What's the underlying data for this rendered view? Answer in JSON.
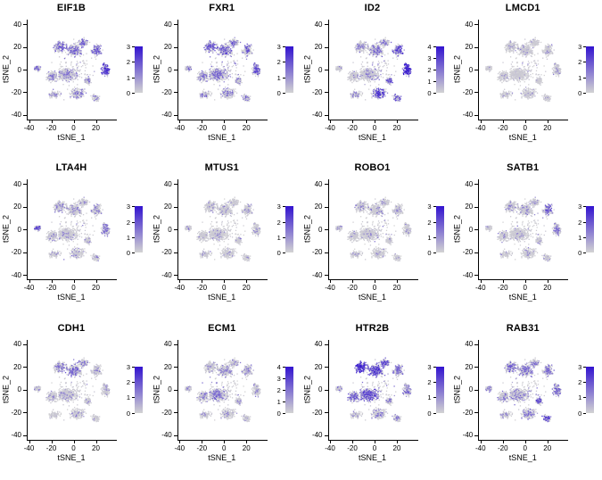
{
  "figure": {
    "description": "Grid of tSNE feature plots showing gene expression",
    "background": "#ffffff"
  },
  "chart_data": {
    "type": "scatter",
    "layout": {
      "rows": 3,
      "cols": 4
    },
    "xlabel": "tSNE_1",
    "ylabel": "tSNE_2",
    "xlim": [
      -42,
      38
    ],
    "ylim": [
      -44,
      44
    ],
    "xticks": [
      -40,
      -20,
      0,
      20
    ],
    "yticks": [
      40,
      20,
      0,
      -20,
      -40
    ],
    "grid": false,
    "legend_position": "right-colorbar",
    "colormap": {
      "low": "#d3d3d3",
      "high": "#3213cf"
    },
    "embedding_clusters": [
      {
        "cx": -13,
        "cy": 20,
        "sx": 5,
        "sy": 4,
        "n": 170
      },
      {
        "cx": 0,
        "cy": 17,
        "sx": 6,
        "sy": 5,
        "n": 220
      },
      {
        "cx": 8,
        "cy": 24,
        "sx": 4,
        "sy": 3,
        "n": 90
      },
      {
        "cx": 20,
        "cy": 17,
        "sx": 4,
        "sy": 4,
        "n": 140
      },
      {
        "cx": 28,
        "cy": 0,
        "sx": 3.5,
        "sy": 5,
        "n": 140
      },
      {
        "cx": -6,
        "cy": -4,
        "sx": 8,
        "sy": 5,
        "n": 320
      },
      {
        "cx": -20,
        "cy": -6,
        "sx": 5,
        "sy": 4,
        "n": 140
      },
      {
        "cx": -33,
        "cy": 1,
        "sx": 2.5,
        "sy": 3,
        "n": 60
      },
      {
        "cx": 3,
        "cy": -21,
        "sx": 6,
        "sy": 4,
        "n": 170
      },
      {
        "cx": -18,
        "cy": -22,
        "sx": 4.5,
        "sy": 3,
        "n": 90
      },
      {
        "cx": 19,
        "cy": -25,
        "sx": 3.5,
        "sy": 3,
        "n": 60
      },
      {
        "cx": 12,
        "cy": -10,
        "sx": 3,
        "sy": 2.5,
        "n": 60
      },
      {
        "cx": -2,
        "cy": 0,
        "sx": 20,
        "sy": 17,
        "n": 120
      }
    ],
    "panels": [
      {
        "title": "EIF1B",
        "colorbar_max": 3,
        "colorbar_ticks": [
          0,
          1,
          2,
          3
        ],
        "weights": [
          0.45,
          0.4,
          0.4,
          0.5,
          0.7,
          0.22,
          0.2,
          0.3,
          0.28,
          0.2,
          0.3,
          0.25,
          0.15
        ]
      },
      {
        "title": "FXR1",
        "colorbar_max": 3,
        "colorbar_ticks": [
          0,
          1,
          2,
          3
        ],
        "weights": [
          0.5,
          0.45,
          0.4,
          0.45,
          0.5,
          0.3,
          0.28,
          0.3,
          0.3,
          0.25,
          0.3,
          0.28,
          0.2
        ]
      },
      {
        "title": "ID2",
        "colorbar_max": 4,
        "colorbar_ticks": [
          0,
          1,
          2,
          3,
          4
        ],
        "weights": [
          0.2,
          0.3,
          0.25,
          0.6,
          0.9,
          0.15,
          0.1,
          0.1,
          0.65,
          0.15,
          0.5,
          0.45,
          0.15
        ]
      },
      {
        "title": "LMCD1",
        "colorbar_max": 3,
        "colorbar_ticks": [
          0,
          1,
          2,
          3
        ],
        "weights": [
          0.06,
          0.06,
          0.05,
          0.08,
          0.1,
          0.05,
          0.05,
          0.05,
          0.06,
          0.05,
          0.05,
          0.05,
          0.05
        ]
      },
      {
        "title": "LTA4H",
        "colorbar_max": 3,
        "colorbar_ticks": [
          0,
          1,
          2,
          3
        ],
        "weights": [
          0.15,
          0.12,
          0.1,
          0.2,
          0.35,
          0.1,
          0.1,
          0.55,
          0.12,
          0.1,
          0.15,
          0.1,
          0.1
        ]
      },
      {
        "title": "MTUS1",
        "colorbar_max": 3,
        "colorbar_ticks": [
          0,
          1,
          2,
          3
        ],
        "weights": [
          0.08,
          0.08,
          0.06,
          0.08,
          0.1,
          0.06,
          0.06,
          0.06,
          0.06,
          0.06,
          0.06,
          0.06,
          0.06
        ]
      },
      {
        "title": "ROBO1",
        "colorbar_max": 3,
        "colorbar_ticks": [
          0,
          1,
          2,
          3
        ],
        "weights": [
          0.12,
          0.1,
          0.1,
          0.08,
          0.06,
          0.05,
          0.05,
          0.05,
          0.05,
          0.05,
          0.05,
          0.05,
          0.05
        ]
      },
      {
        "title": "SATB1",
        "colorbar_max": 3,
        "colorbar_ticks": [
          0,
          1,
          2,
          3
        ],
        "weights": [
          0.12,
          0.12,
          0.1,
          0.45,
          0.3,
          0.06,
          0.06,
          0.06,
          0.08,
          0.06,
          0.08,
          0.08,
          0.06
        ]
      },
      {
        "title": "CDH1",
        "colorbar_max": 3,
        "colorbar_ticks": [
          0,
          1,
          2,
          3
        ],
        "weights": [
          0.3,
          0.35,
          0.3,
          0.15,
          0.12,
          0.12,
          0.1,
          0.1,
          0.1,
          0.08,
          0.08,
          0.1,
          0.08
        ]
      },
      {
        "title": "ECM1",
        "colorbar_max": 4,
        "colorbar_ticks": [
          0,
          1,
          2,
          3,
          4
        ],
        "weights": [
          0.15,
          0.2,
          0.15,
          0.15,
          0.12,
          0.3,
          0.2,
          0.1,
          0.12,
          0.1,
          0.1,
          0.12,
          0.1
        ]
      },
      {
        "title": "HTR2B",
        "colorbar_max": 3,
        "colorbar_ticks": [
          0,
          1,
          2,
          3
        ],
        "weights": [
          0.75,
          0.65,
          0.6,
          0.35,
          0.3,
          0.55,
          0.45,
          0.25,
          0.25,
          0.2,
          0.2,
          0.25,
          0.2
        ]
      },
      {
        "title": "RAB31",
        "colorbar_max": 3,
        "colorbar_ticks": [
          0,
          1,
          2,
          3
        ],
        "weights": [
          0.4,
          0.35,
          0.3,
          0.35,
          0.45,
          0.2,
          0.2,
          0.2,
          0.3,
          0.2,
          0.6,
          0.55,
          0.15
        ]
      }
    ]
  }
}
